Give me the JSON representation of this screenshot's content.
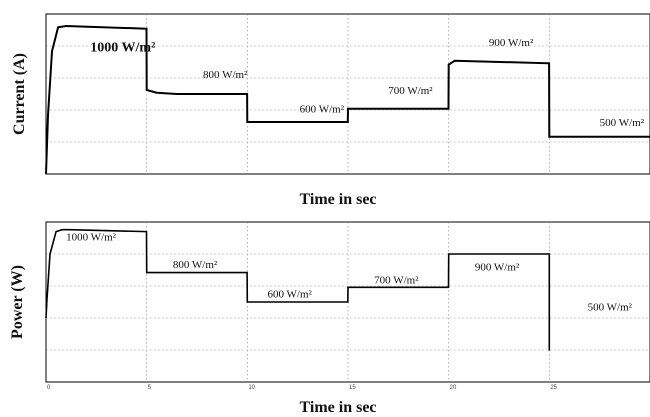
{
  "chart_data": [
    {
      "type": "line",
      "title": "",
      "xlabel": "Time in sec",
      "ylabel": "Current (A)",
      "xlim": [
        0,
        30
      ],
      "ylim": [
        1,
        7
      ],
      "grid": true,
      "series": [
        {
          "x": [
            0,
            0.1,
            0.3,
            0.6,
            1.0,
            4.99,
            5.0,
            5.5,
            6.5,
            9.99,
            10.0,
            14.99,
            15.0,
            19.99,
            20.0,
            20.3,
            24.99,
            25.0,
            30.0
          ],
          "y": [
            1,
            3.2,
            5.6,
            6.5,
            6.55,
            6.45,
            4.15,
            4.05,
            4.0,
            4.0,
            2.95,
            2.95,
            3.45,
            3.45,
            5.1,
            5.25,
            5.15,
            2.4,
            2.4
          ]
        }
      ],
      "annotations": [
        {
          "text": "1000 W/m²",
          "x": 2.2,
          "y": 5.6,
          "size": "big"
        },
        {
          "text": "800 W/m²",
          "x": 7.8,
          "y": 4.6
        },
        {
          "text": "600 W/m²",
          "x": 12.6,
          "y": 3.3
        },
        {
          "text": "700 W/m²",
          "x": 17.0,
          "y": 4.0
        },
        {
          "text": "900 W/m²",
          "x": 22.0,
          "y": 5.8
        },
        {
          "text": "500 W/m²",
          "x": 27.5,
          "y": 2.8
        }
      ]
    },
    {
      "type": "line",
      "title": "",
      "xlabel": "Time in sec",
      "ylabel": "Power (W)",
      "xlim": [
        0,
        30
      ],
      "ylim": [
        -50,
        200
      ],
      "grid": true,
      "xticks": [
        0,
        5,
        10,
        15,
        20,
        25
      ],
      "series": [
        {
          "x": [
            0,
            0.05,
            0.2,
            0.5,
            0.8,
            1.2,
            4.99,
            5.0,
            9.99,
            10.0,
            14.99,
            15.0,
            19.99,
            20.0,
            24.99,
            25.0,
            25.0,
            25.02,
            25.02
          ],
          "y": [
            50,
            80,
            150,
            185,
            188,
            188,
            185,
            121,
            121,
            75,
            75,
            98,
            98,
            150,
            150,
            150,
            0,
            0,
            0
          ]
        }
      ],
      "annotations": [
        {
          "text": "1000 W/m²",
          "x": 1.0,
          "y": 171
        },
        {
          "text": "800 W/m²",
          "x": 6.3,
          "y": 128
        },
        {
          "text": "600 W/m²",
          "x": 11.0,
          "y": 82
        },
        {
          "text": "700 W/m²",
          "x": 16.3,
          "y": 104
        },
        {
          "text": "900 W/m²",
          "x": 21.3,
          "y": 124
        },
        {
          "text": "500 W/m²",
          "x": 26.9,
          "y": 62
        }
      ]
    }
  ]
}
